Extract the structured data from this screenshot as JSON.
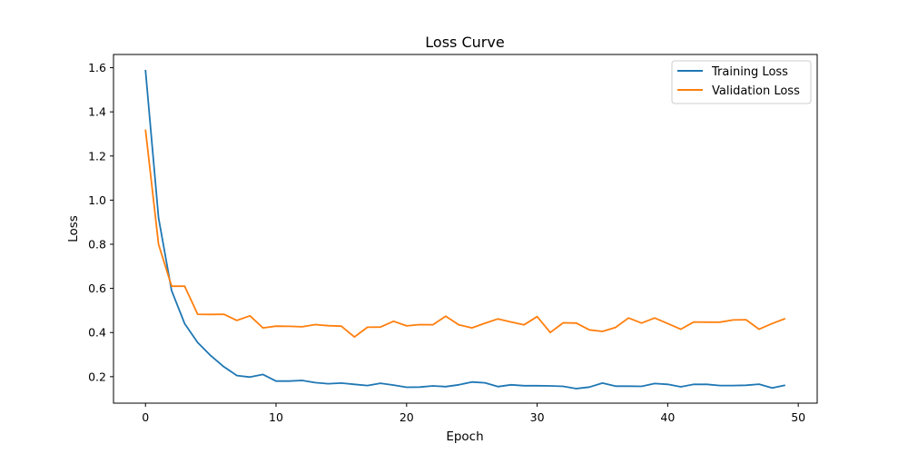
{
  "chart_data": {
    "type": "line",
    "title": "Loss Curve",
    "xlabel": "Epoch",
    "ylabel": "Loss",
    "xlim": [
      -2.45,
      51.45
    ],
    "ylim": [
      0.08,
      1.66
    ],
    "xticks": [
      0,
      10,
      20,
      30,
      40,
      50
    ],
    "yticks": [
      0.2,
      0.4,
      0.6,
      0.8,
      1.0,
      1.2,
      1.4,
      1.6
    ],
    "ytick_labels": [
      "0.2",
      "0.4",
      "0.6",
      "0.8",
      "1.0",
      "1.2",
      "1.4",
      "1.6"
    ],
    "grid": false,
    "legend_position": "top-right",
    "x": [
      0,
      1,
      2,
      3,
      4,
      5,
      6,
      7,
      8,
      9,
      10,
      11,
      12,
      13,
      14,
      15,
      16,
      17,
      18,
      19,
      20,
      21,
      22,
      23,
      24,
      25,
      26,
      27,
      28,
      29,
      30,
      31,
      32,
      33,
      34,
      35,
      36,
      37,
      38,
      39,
      40,
      41,
      42,
      43,
      44,
      45,
      46,
      47,
      48,
      49
    ],
    "series": [
      {
        "name": "Training Loss",
        "color": "#1f77b4",
        "values": [
          1.59,
          0.92,
          0.59,
          0.44,
          0.355,
          0.295,
          0.245,
          0.205,
          0.198,
          0.21,
          0.18,
          0.18,
          0.183,
          0.173,
          0.168,
          0.171,
          0.165,
          0.16,
          0.17,
          0.162,
          0.152,
          0.153,
          0.158,
          0.155,
          0.163,
          0.176,
          0.172,
          0.155,
          0.163,
          0.159,
          0.159,
          0.158,
          0.156,
          0.146,
          0.153,
          0.171,
          0.157,
          0.157,
          0.156,
          0.169,
          0.165,
          0.154,
          0.165,
          0.165,
          0.16,
          0.16,
          0.161,
          0.166,
          0.149,
          0.161
        ]
      },
      {
        "name": "Validation Loss",
        "color": "#ff7f0e",
        "values": [
          1.32,
          0.8,
          0.61,
          0.61,
          0.483,
          0.482,
          0.483,
          0.455,
          0.476,
          0.421,
          0.429,
          0.428,
          0.426,
          0.436,
          0.431,
          0.429,
          0.38,
          0.424,
          0.425,
          0.451,
          0.43,
          0.436,
          0.435,
          0.474,
          0.435,
          0.421,
          0.442,
          0.462,
          0.448,
          0.435,
          0.472,
          0.4,
          0.444,
          0.443,
          0.412,
          0.405,
          0.423,
          0.466,
          0.443,
          0.466,
          0.441,
          0.415,
          0.448,
          0.447,
          0.447,
          0.457,
          0.458,
          0.415,
          0.441,
          0.463
        ]
      }
    ]
  }
}
